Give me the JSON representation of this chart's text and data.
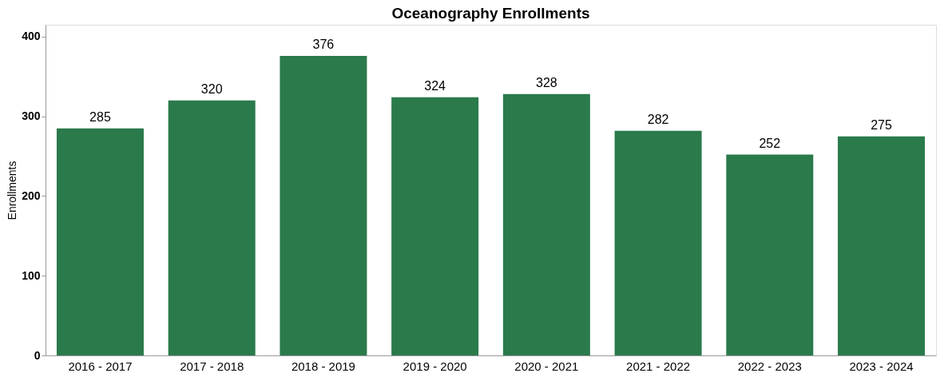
{
  "chart_data": {
    "type": "bar",
    "title": "Oceanography Enrollments",
    "ylabel": "Enrollments",
    "categories": [
      "2016 - 2017",
      "2017 - 2018",
      "2018 - 2019",
      "2019 - 2020",
      "2020 - 2021",
      "2021 - 2022",
      "2022 - 2023",
      "2023 - 2024"
    ],
    "values": [
      285,
      320,
      376,
      324,
      328,
      282,
      252,
      275
    ],
    "color": "#2a7a4b",
    "ylim": [
      0,
      415
    ],
    "yticks": [
      0,
      100,
      200,
      300,
      400
    ],
    "grid": false,
    "data_labels": true
  }
}
